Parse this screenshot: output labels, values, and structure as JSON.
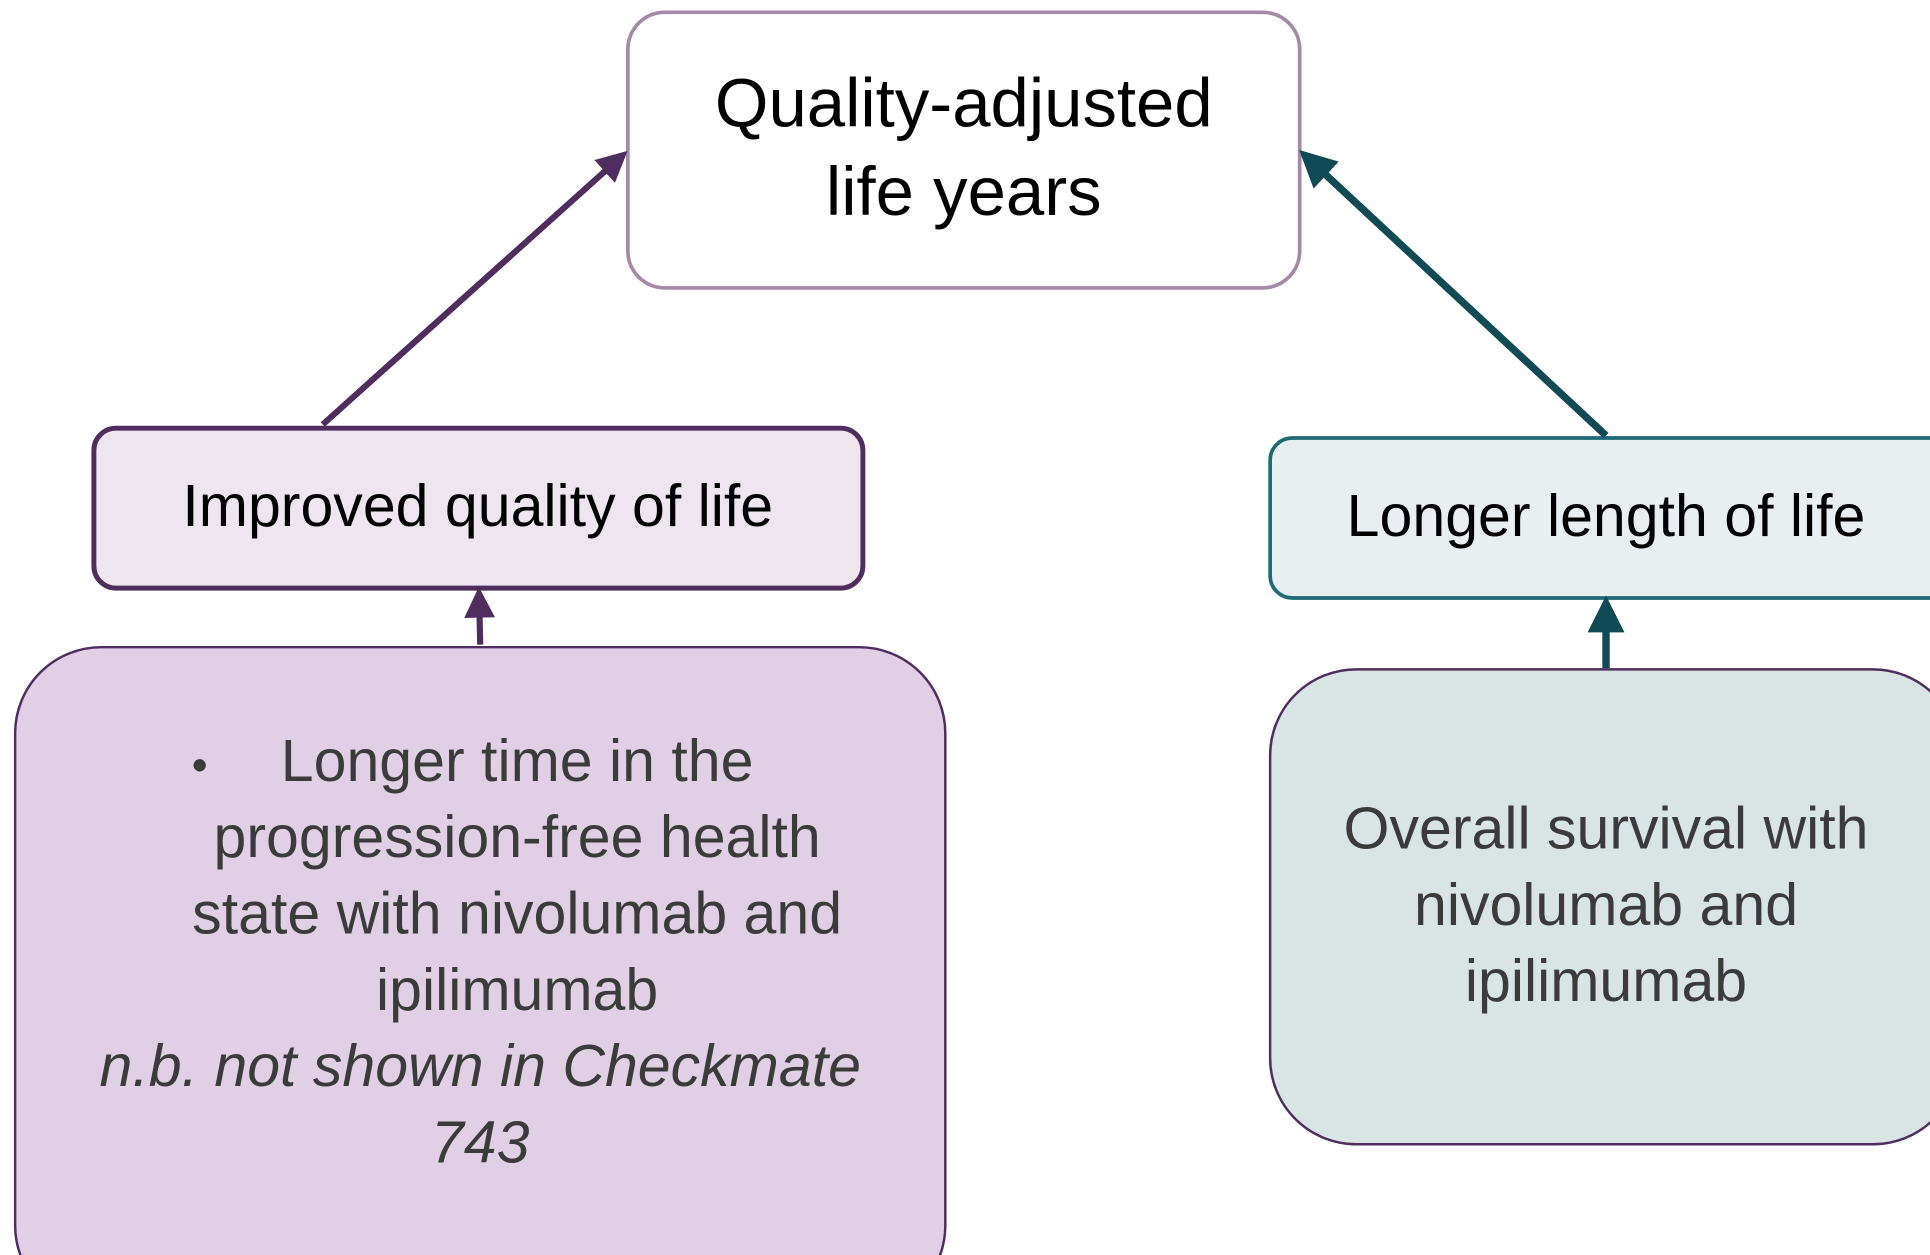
{
  "nodes": [
    {
      "lines": [
        "Quality-adjusted",
        "life years"
      ]
    },
    {
      "lines": [
        "Improved quality of life"
      ]
    },
    {
      "lines": [
        "Longer length of life"
      ]
    },
    {
      "lines": [
        "Longer time in the",
        "progression-free health",
        "state with nivolumab and",
        "ipilimumab"
      ],
      "note": [
        "n.b. not shown in Checkmate",
        "743"
      ]
    },
    {
      "lines": [
        "Overall survival with",
        "nivolumab and",
        "ipilimumab"
      ]
    }
  ]
}
